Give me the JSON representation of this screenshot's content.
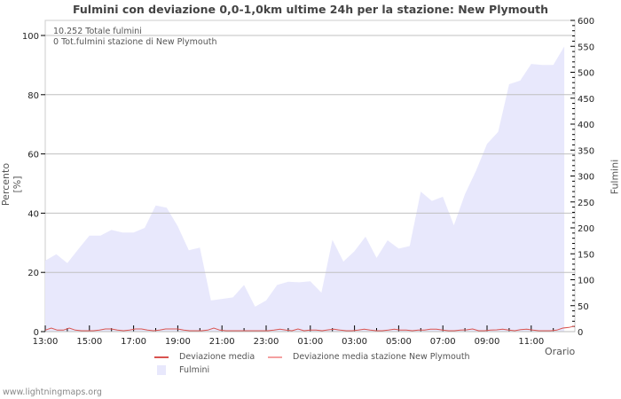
{
  "header": {
    "title": "Fulmini con deviazione 0,0-1,0km ultime 24h per la stazione: New Plymouth"
  },
  "info": {
    "total_strikes": "10.252 Totale fulmini",
    "station_strikes": "0 Tot.fulmini stazione di New Plymouth"
  },
  "legend": {
    "deviation_mean": "Deviazione media",
    "deviation_mean_station": "Deviazione media stazione New Plymouth",
    "strikes": "Fulmini"
  },
  "footer": {
    "watermark": "www.lightningmaps.org"
  },
  "colors": {
    "area_fill": "#e8e8fc",
    "deviation_mean": "#d9534f",
    "deviation_mean_station": "#f4a0a0",
    "grid": "#c0c0c0",
    "axis": "#000000"
  },
  "chart_data": {
    "type": "area",
    "title": "Fulmini con deviazione 0,0-1,0km ultime 24h per la stazione: New Plymouth",
    "xlabel": "Orario",
    "ylabel": "Percento   [%]",
    "y2label": "Fulmini",
    "ylim": [
      0,
      105
    ],
    "y2lim": [
      0,
      600
    ],
    "yticks": [
      0,
      20,
      40,
      60,
      80,
      100
    ],
    "y2ticks": [
      0,
      50,
      100,
      150,
      200,
      250,
      300,
      350,
      400,
      450,
      500,
      550,
      600
    ],
    "xticks": [
      "13:00",
      "15:00",
      "17:00",
      "19:00",
      "21:00",
      "23:00",
      "01:00",
      "03:00",
      "05:00",
      "07:00",
      "09:00",
      "11:00"
    ],
    "grid": true,
    "interval_minutes": 30,
    "series": [
      {
        "name": "Fulmini",
        "axis": "right",
        "kind": "area",
        "values": [
          137,
          149,
          132,
          159,
          185,
          185,
          196,
          191,
          191,
          200,
          243,
          239,
          203,
          157,
          162,
          60,
          63,
          66,
          90,
          48,
          60,
          90,
          96,
          95,
          97,
          75,
          177,
          135,
          155,
          183,
          142,
          176,
          160,
          165,
          270,
          252,
          260,
          205,
          265,
          310,
          362,
          385,
          477,
          484,
          516,
          514,
          514,
          550
        ]
      },
      {
        "name": "Deviazione media",
        "axis": "left",
        "kind": "line",
        "values": [
          0.2,
          0.9,
          0.2,
          0.2,
          0.9,
          0.2,
          0,
          0,
          0,
          0.2,
          0.6,
          0.6,
          0.2,
          0,
          0.2,
          0.6,
          0.6,
          0.2,
          0,
          0.2,
          0.6,
          0.6,
          0.6,
          0.2,
          0,
          0,
          0,
          0.2,
          0.9,
          0.2,
          0,
          0,
          0,
          0,
          0,
          0,
          0,
          0,
          0.2,
          0.5,
          0.2,
          0,
          0.6,
          0,
          0.2,
          0.2,
          0,
          0.3,
          0.5,
          0.2,
          0,
          0,
          0.2,
          0.5,
          0.2,
          0,
          0,
          0.2,
          0.5,
          0.2,
          0.2,
          0,
          0.2,
          0.2,
          0.5,
          0.5,
          0.2,
          0,
          0,
          0.2,
          0.3,
          0.6,
          0,
          0,
          0.2,
          0.3,
          0.5,
          0.2,
          0,
          0.4,
          0.5,
          0.2,
          0,
          0,
          0,
          0.2,
          0.9,
          1.1,
          1.6
        ]
      },
      {
        "name": "Deviazione media stazione New Plymouth",
        "axis": "left",
        "kind": "line",
        "values": []
      }
    ]
  }
}
